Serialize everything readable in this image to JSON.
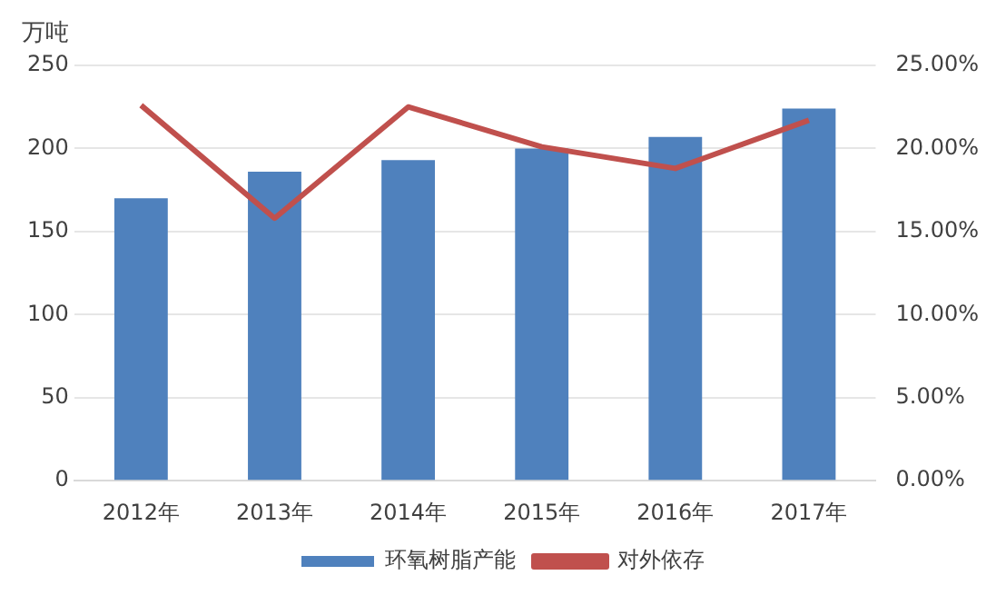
{
  "chart_data": {
    "type": "bar",
    "ylabel": "万吨",
    "categories": [
      "2012年",
      "2013年",
      "2014年",
      "2015年",
      "2016年",
      "2017年"
    ],
    "series": [
      {
        "name": "环氧树脂产能",
        "color": "#4f81bd",
        "values": [
          170,
          186,
          193,
          200,
          207,
          224
        ]
      },
      {
        "name": "对外依存",
        "type": "line",
        "color": "#c0504d",
        "axis": "y2",
        "values": [
          22.6,
          15.8,
          22.5,
          20.1,
          18.8,
          21.7
        ]
      }
    ],
    "ylim": [
      0,
      250
    ],
    "yticks": [
      0,
      50,
      100,
      150,
      200,
      250
    ],
    "y2lim": [
      0,
      25
    ],
    "y2ticks": [
      {
        "value": 0,
        "label": "0.00%"
      },
      {
        "value": 5,
        "label": "5.00%"
      },
      {
        "value": 10,
        "label": "10.00%"
      },
      {
        "value": 15,
        "label": "15.00%"
      },
      {
        "value": 20,
        "label": "20.00%"
      },
      {
        "value": 25,
        "label": "25.00%"
      }
    ],
    "grid": "y",
    "legend": "bottom",
    "marker": "none",
    "line_style": "solid"
  }
}
